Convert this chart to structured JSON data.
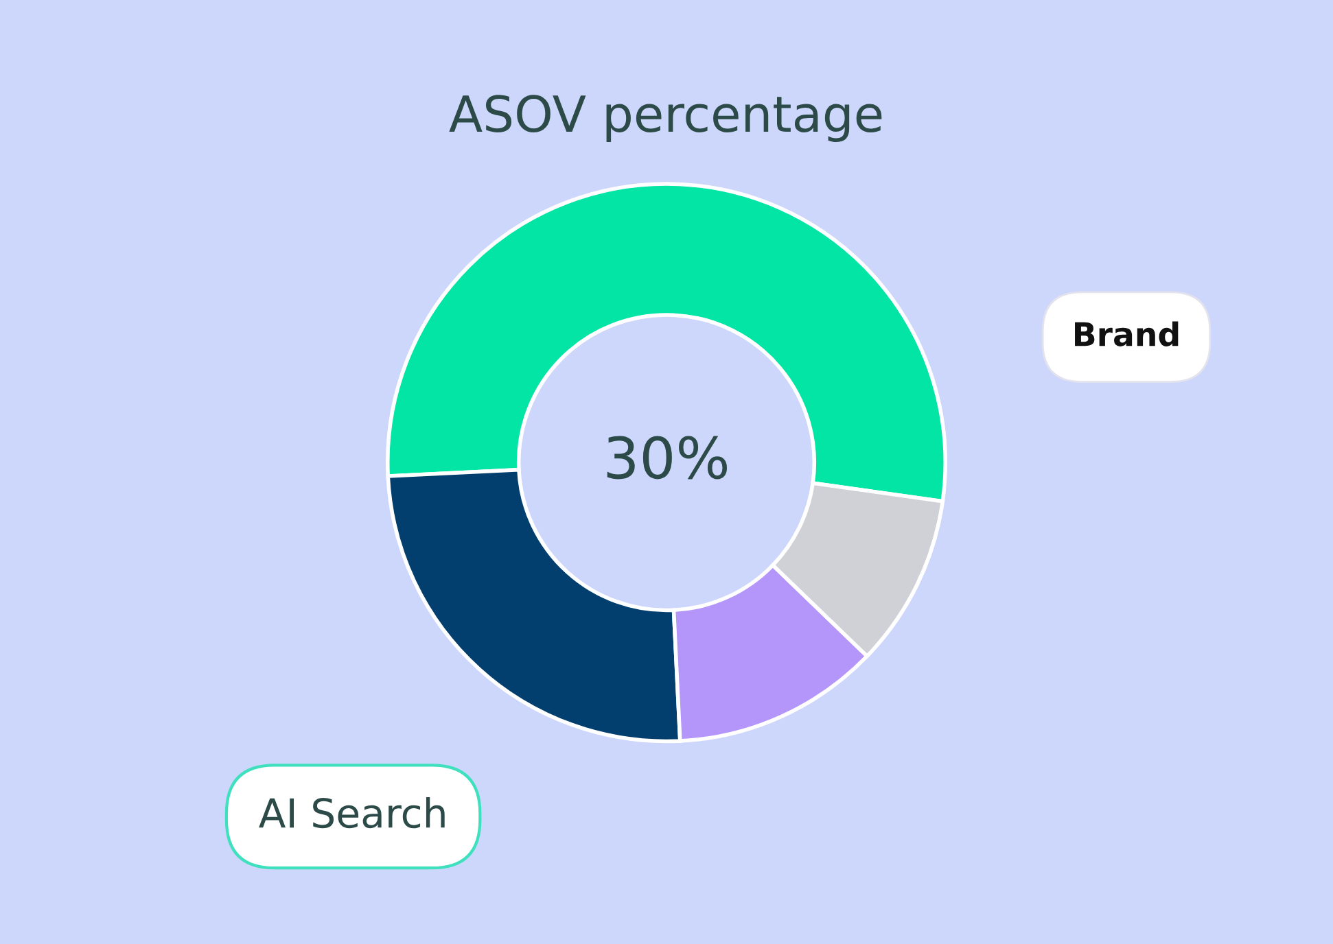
{
  "chart_data": {
    "type": "donut",
    "title": "ASOV percentage",
    "categories": [
      null,
      null,
      null,
      null
    ],
    "values": [
      53,
      25,
      12,
      10
    ],
    "colors": [
      "#03e5a5",
      "#023e6e",
      "#b496fa",
      "#d0d1d6"
    ],
    "annotations": [
      "30%",
      "Brand",
      "AI Search"
    ]
  }
}
